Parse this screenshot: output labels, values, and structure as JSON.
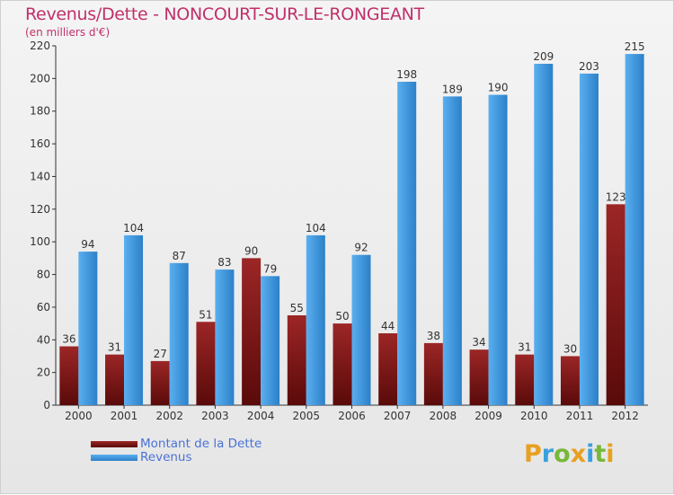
{
  "title": "Revenus/Dette - NONCOURT-SUR-LE-RONGEANT",
  "subtitle": "(en milliers d'€)",
  "brand": {
    "text": "Proxiti"
  },
  "colors": {
    "dette_top": "#9c2626",
    "dette_bottom": "#5a0a0a",
    "revenus_top": "#5aaff0",
    "revenus_bottom": "#2c80c8",
    "title": "#c0306a",
    "legend_text": "#4a72d6"
  },
  "chart_data": {
    "type": "bar",
    "title": "Revenus/Dette - NONCOURT-SUR-LE-RONGEANT",
    "ylabel": "(en milliers d'€)",
    "categories": [
      "2000",
      "2001",
      "2002",
      "2003",
      "2004",
      "2005",
      "2006",
      "2007",
      "2008",
      "2009",
      "2010",
      "2011",
      "2012"
    ],
    "ylim": [
      0,
      220
    ],
    "yticks": [
      0,
      20,
      40,
      60,
      80,
      100,
      120,
      140,
      160,
      180,
      200,
      220
    ],
    "grid": false,
    "legend_position": "bottom-left",
    "series": [
      {
        "name": "Montant de la Dette",
        "values": [
          36,
          31,
          27,
          51,
          90,
          55,
          50,
          44,
          38,
          34,
          31,
          30,
          123
        ]
      },
      {
        "name": "Revenus",
        "values": [
          94,
          104,
          87,
          83,
          79,
          104,
          92,
          198,
          189,
          190,
          209,
          203,
          215
        ]
      }
    ]
  }
}
